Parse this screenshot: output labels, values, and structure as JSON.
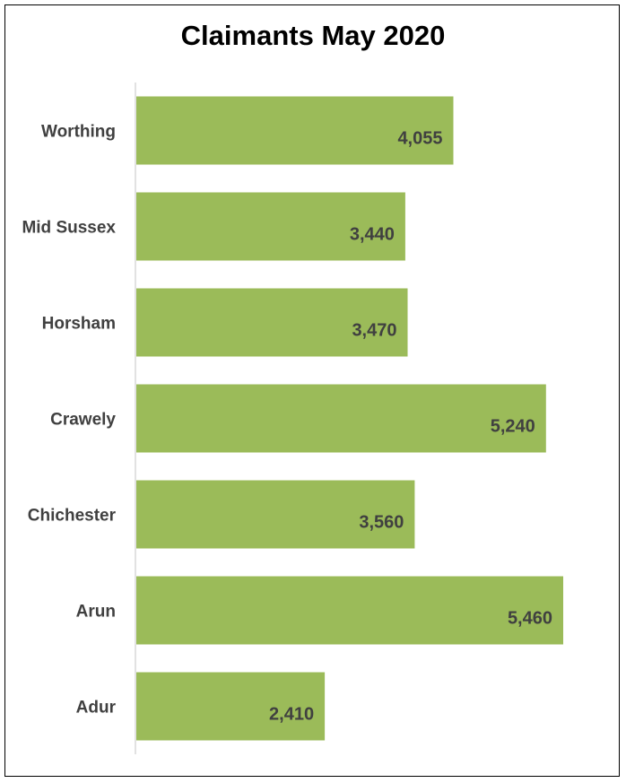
{
  "chart_data": {
    "type": "bar",
    "orientation": "horizontal",
    "title": "Claimants May 2020",
    "xlabel": "",
    "ylabel": "",
    "categories": [
      "Worthing",
      "Mid Sussex",
      "Horsham",
      "Crawely",
      "Chichester",
      "Arun",
      "Adur"
    ],
    "values": [
      4055,
      3440,
      3470,
      5240,
      3560,
      5460,
      2410
    ],
    "value_labels": [
      "4,055",
      "3,440",
      "3,470",
      "5,240",
      "3,560",
      "5,460",
      "2,410"
    ],
    "xlim": [
      0,
      6000
    ],
    "grid": false,
    "legend": "none",
    "bar_color": "#9BBB59",
    "axis_color": "#D9D9D9",
    "label_color": "#404040"
  }
}
